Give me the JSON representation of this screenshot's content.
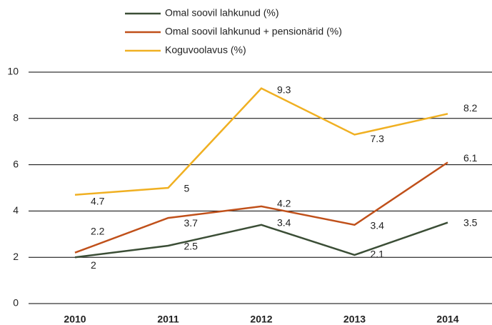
{
  "chart_data": {
    "type": "line",
    "categories": [
      "2010",
      "2011",
      "2012",
      "2013",
      "2014"
    ],
    "series": [
      {
        "name": "Omal soovil lahkunud (%)",
        "color": "#3b4e36",
        "values": [
          2,
          2.5,
          3.4,
          2.1,
          3.5
        ]
      },
      {
        "name": "Omal soovil lahkunud + pensionärid (%)",
        "color": "#c0501a",
        "values": [
          2.2,
          3.7,
          4.2,
          3.4,
          6.1
        ]
      },
      {
        "name": "Koguvoolavus (%)",
        "color": "#f0b022",
        "values": [
          4.7,
          5,
          9.3,
          7.3,
          8.2
        ]
      }
    ],
    "ylim": [
      0,
      10
    ],
    "yticks": [
      0,
      2,
      4,
      6,
      8,
      10
    ],
    "grid": true
  }
}
